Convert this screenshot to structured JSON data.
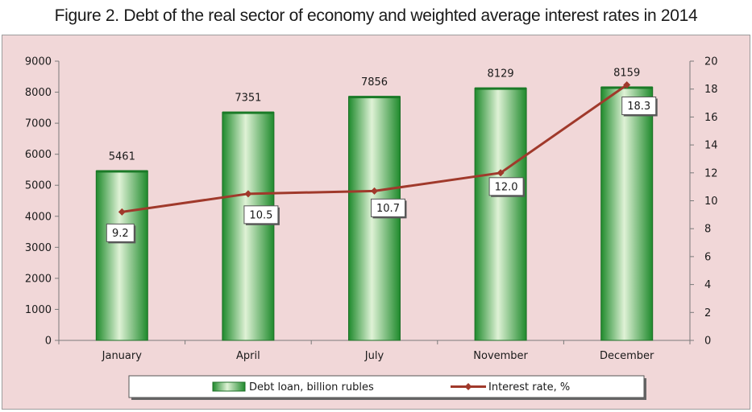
{
  "title": "Figure 2. Debt of the real sector of economy and weighted average interest rates in 2014",
  "chart_data": {
    "type": "bar",
    "categories": [
      "January",
      "April",
      "July",
      "November",
      "December"
    ],
    "series": [
      {
        "name": "Debt loan, billion rubles",
        "chart_type": "bar",
        "axis": "left",
        "values": [
          5461,
          7351,
          7856,
          8129,
          8159
        ],
        "labels": [
          "5461",
          "7351",
          "7856",
          "8129",
          "8159"
        ],
        "color": "#2e9e3a"
      },
      {
        "name": "Interest rate, %",
        "chart_type": "line",
        "axis": "right",
        "values": [
          9.2,
          10.5,
          10.7,
          12.0,
          18.3
        ],
        "labels": [
          "9.2",
          "10.5",
          "10.7",
          "12.0",
          "18.3"
        ],
        "color": "#a0392b"
      }
    ],
    "y_left": {
      "min": 0,
      "max": 9000,
      "step": 1000,
      "ticks": [
        "0",
        "1000",
        "2000",
        "3000",
        "4000",
        "5000",
        "6000",
        "7000",
        "8000",
        "9000"
      ]
    },
    "y_right": {
      "min": 0,
      "max": 20,
      "step": 2,
      "ticks": [
        "0",
        "2",
        "4",
        "6",
        "8",
        "10",
        "12",
        "14",
        "16",
        "18",
        "20"
      ]
    },
    "legend_position": "bottom",
    "grid": false,
    "background_color": "#f1d7d8"
  }
}
